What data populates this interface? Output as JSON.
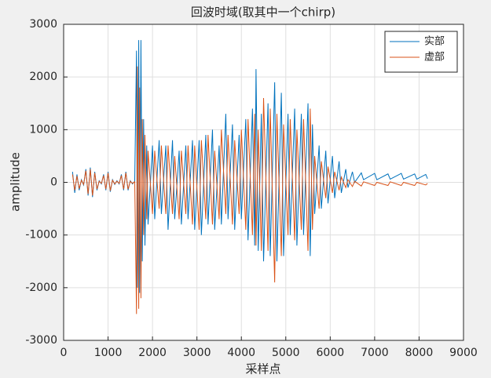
{
  "chart_data": {
    "type": "line",
    "title": "回波时域(取其中一个chirp)",
    "x_label": "采样点",
    "y_label": "amplitude",
    "x": [
      200,
      250,
      300,
      350,
      400,
      450,
      500,
      550,
      600,
      650,
      700,
      750,
      800,
      850,
      900,
      950,
      1000,
      1050,
      1100,
      1150,
      1200,
      1250,
      1300,
      1350,
      1400,
      1450,
      1500,
      1550,
      1600,
      1640,
      1660,
      1690,
      1710,
      1740,
      1770,
      1800,
      1830,
      1870,
      1900,
      2000,
      2050,
      2150,
      2200,
      2300,
      2350,
      2450,
      2500,
      2600,
      2650,
      2750,
      2800,
      2900,
      2950,
      3050,
      3100,
      3200,
      3250,
      3350,
      3400,
      3500,
      3550,
      3650,
      3700,
      3800,
      3850,
      3950,
      4000,
      4100,
      4150,
      4250,
      4300,
      4330,
      4380,
      4450,
      4500,
      4600,
      4650,
      4750,
      4800,
      4900,
      4950,
      5050,
      5100,
      5200,
      5250,
      5350,
      5400,
      5500,
      5550,
      5600,
      5650,
      5750,
      5800,
      5900,
      5950,
      6050,
      6100,
      6200,
      6250,
      6350,
      6400,
      6500,
      6550,
      6700,
      6750,
      7000,
      7050,
      7300,
      7350,
      7600,
      7650,
      7900,
      7950,
      8150,
      8190
    ],
    "series": [
      {
        "name": "实部",
        "color": "#0072BD",
        "values": [
          200,
          -200,
          150,
          -150,
          50,
          -50,
          250,
          -250,
          280,
          -280,
          200,
          -150,
          30,
          -30,
          150,
          -150,
          200,
          -180,
          50,
          -40,
          30,
          -30,
          150,
          -150,
          200,
          -150,
          30,
          -30,
          20,
          2500,
          -2000,
          2700,
          -2100,
          2700,
          -1500,
          1200,
          -1200,
          700,
          -800,
          700,
          -700,
          800,
          -600,
          700,
          -900,
          800,
          -700,
          600,
          -800,
          700,
          -700,
          800,
          -900,
          800,
          -1000,
          900,
          -800,
          1000,
          -900,
          700,
          -800,
          1300,
          -700,
          1100,
          -900,
          900,
          -700,
          1200,
          -1100,
          1400,
          -1200,
          2150,
          -1300,
          1300,
          -1500,
          1500,
          -1400,
          1900,
          -1500,
          1700,
          -1400,
          1300,
          -1000,
          1400,
          -1200,
          1300,
          -1000,
          1500,
          -1400,
          1100,
          -600,
          700,
          -500,
          600,
          -400,
          500,
          -300,
          400,
          -200,
          250,
          -100,
          200,
          0,
          180,
          50,
          170,
          50,
          160,
          60,
          170,
          60,
          160,
          60,
          150,
          70
        ]
      },
      {
        "name": "虚部",
        "color": "#D95319",
        "values": [
          150,
          -150,
          120,
          -120,
          40,
          -40,
          220,
          -220,
          250,
          -250,
          180,
          -130,
          20,
          -20,
          130,
          -130,
          180,
          -160,
          40,
          -30,
          20,
          -20,
          130,
          -130,
          180,
          -130,
          20,
          -20,
          10,
          -2500,
          2200,
          -2400,
          1800,
          -2200,
          1200,
          -1000,
          900,
          -700,
          600,
          -600,
          600,
          -500,
          700,
          -600,
          700,
          -600,
          500,
          -700,
          600,
          -600,
          700,
          -800,
          700,
          -900,
          800,
          -700,
          900,
          -800,
          600,
          -700,
          1000,
          -600,
          900,
          -800,
          800,
          -600,
          1000,
          -900,
          1200,
          -1000,
          1300,
          -1200,
          1000,
          -1300,
          1600,
          -1300,
          1400,
          -1900,
          1300,
          -1400,
          1100,
          -1000,
          1200,
          -1100,
          1000,
          -900,
          1200,
          -1300,
          1400,
          -900,
          500,
          -500,
          400,
          -300,
          300,
          -200,
          200,
          -150,
          100,
          -100,
          50,
          -80,
          20,
          -70,
          10,
          -60,
          0,
          -60,
          10,
          -60,
          0,
          -60,
          0,
          -50,
          -20
        ]
      }
    ],
    "xlim": [
      0,
      9000
    ],
    "xticks": [
      0,
      1000,
      2000,
      3000,
      4000,
      5000,
      6000,
      7000,
      8000,
      9000
    ],
    "ylim": [
      -3000,
      3000
    ],
    "yticks": [
      -3000,
      -2000,
      -1000,
      0,
      1000,
      2000,
      3000
    ],
    "grid": true,
    "legend": "northeast"
  }
}
